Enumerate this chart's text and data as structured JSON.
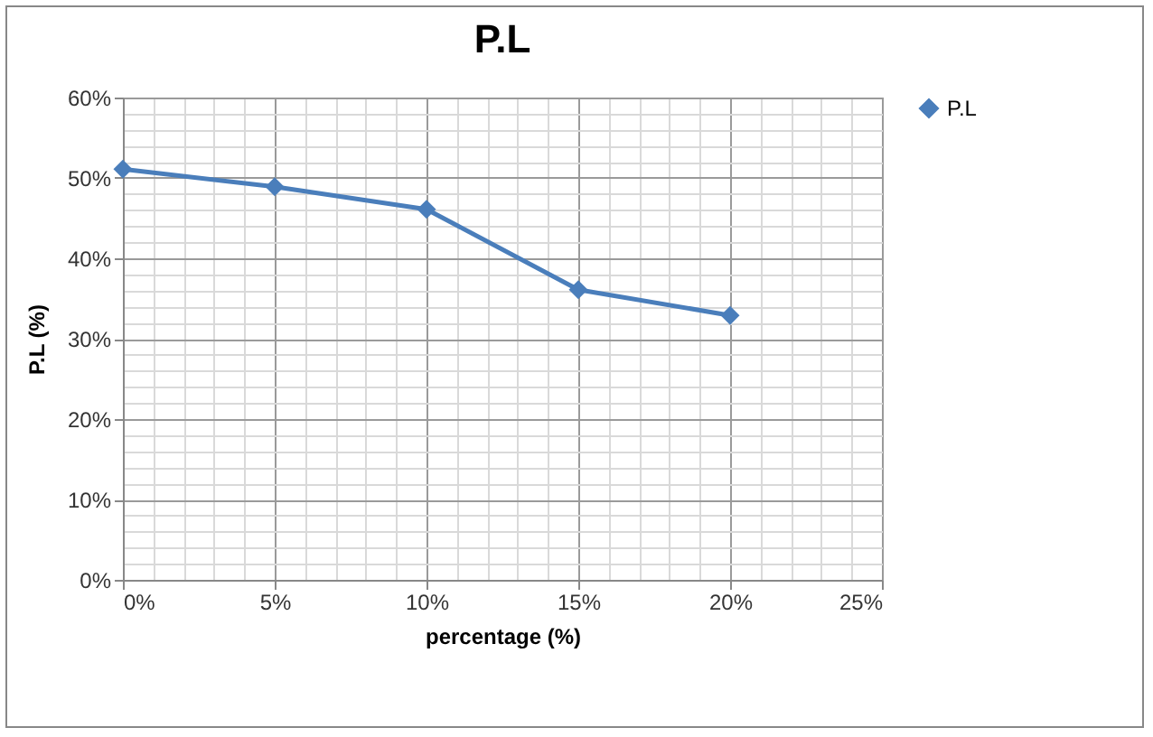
{
  "chart_data": {
    "type": "line",
    "title": "P.L",
    "xlabel": "percentage (%)",
    "ylabel": "P.L (%)",
    "x": [
      0,
      5,
      10,
      15,
      20
    ],
    "series": [
      {
        "name": "P.L",
        "color": "#4a7ebb",
        "values": [
          51.1,
          48.9,
          46.1,
          36.1,
          32.9
        ]
      }
    ],
    "xlim": [
      0,
      25
    ],
    "xticks": [
      {
        "value": 0,
        "label": "0%"
      },
      {
        "value": 5,
        "label": "5%"
      },
      {
        "value": 10,
        "label": "10%"
      },
      {
        "value": 15,
        "label": "15%"
      },
      {
        "value": 20,
        "label": "20%"
      },
      {
        "value": 25,
        "label": "25%"
      }
    ],
    "ylim": [
      0,
      60
    ],
    "yticks": [
      {
        "value": 0,
        "label": "0%"
      },
      {
        "value": 10,
        "label": "10%"
      },
      {
        "value": 20,
        "label": "20%"
      },
      {
        "value": 30,
        "label": "30%"
      },
      {
        "value": 40,
        "label": "40%"
      },
      {
        "value": 50,
        "label": "50%"
      },
      {
        "value": 60,
        "label": "60%"
      }
    ],
    "grid": true,
    "legend": "right",
    "marker": "diamond",
    "line_style": "solid"
  }
}
